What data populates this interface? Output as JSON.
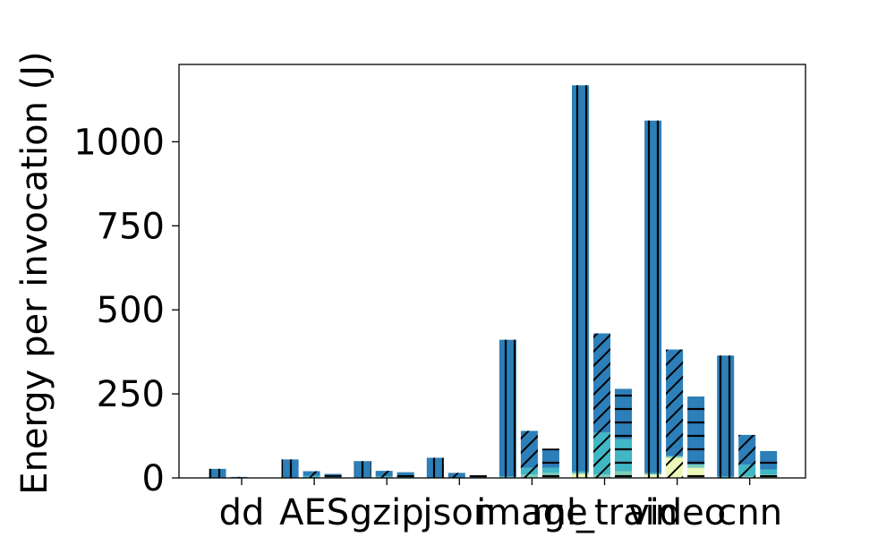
{
  "chart_data": {
    "type": "bar",
    "ylabel": "Energy per invocation (J)",
    "xlabel": "",
    "ylim": [
      0,
      1230
    ],
    "yticks": [
      0,
      250,
      500,
      750,
      1000
    ],
    "categories": [
      "dd",
      "AES",
      "gzip",
      "json",
      "image",
      "ml_train",
      "video",
      "cnn"
    ],
    "bars_per_category": [
      "vertical-hatch",
      "diagonal-hatch",
      "horizontal-hatch"
    ],
    "component_colors": [
      "#edf7b8",
      "#7fcdbb",
      "#41b6c4",
      "#2c7fb8"
    ],
    "bars": [
      {
        "category": "dd",
        "hatch": "vertical",
        "segments": [
          0,
          0,
          0,
          27
        ]
      },
      {
        "category": "dd",
        "hatch": "diagonal",
        "segments": [
          0,
          0,
          0,
          3
        ]
      },
      {
        "category": "dd",
        "hatch": "horizontal",
        "segments": [
          0,
          0,
          0,
          1
        ]
      },
      {
        "category": "AES",
        "hatch": "vertical",
        "segments": [
          0,
          0,
          0,
          55
        ]
      },
      {
        "category": "AES",
        "hatch": "diagonal",
        "segments": [
          0,
          0,
          6,
          14
        ]
      },
      {
        "category": "AES",
        "hatch": "horizontal",
        "segments": [
          0,
          0,
          5,
          7
        ]
      },
      {
        "category": "gzip",
        "hatch": "vertical",
        "segments": [
          0,
          0,
          0,
          50
        ]
      },
      {
        "category": "gzip",
        "hatch": "diagonal",
        "segments": [
          0,
          0,
          5,
          16
        ]
      },
      {
        "category": "gzip",
        "hatch": "horizontal",
        "segments": [
          0,
          0,
          8,
          9
        ]
      },
      {
        "category": "json",
        "hatch": "vertical",
        "segments": [
          0,
          0,
          0,
          60
        ]
      },
      {
        "category": "json",
        "hatch": "diagonal",
        "segments": [
          0,
          0,
          0,
          15
        ]
      },
      {
        "category": "json",
        "hatch": "horizontal",
        "segments": [
          0,
          0,
          0,
          8
        ]
      },
      {
        "category": "image",
        "hatch": "vertical",
        "segments": [
          0,
          2,
          3,
          406
        ]
      },
      {
        "category": "image",
        "hatch": "diagonal",
        "segments": [
          0,
          10,
          20,
          110
        ]
      },
      {
        "category": "image",
        "hatch": "horizontal",
        "segments": [
          0,
          15,
          15,
          57
        ]
      },
      {
        "category": "ml_train",
        "hatch": "vertical",
        "segments": [
          12,
          3,
          5,
          1148
        ]
      },
      {
        "category": "ml_train",
        "hatch": "diagonal",
        "segments": [
          0,
          10,
          125,
          295
        ]
      },
      {
        "category": "ml_train",
        "hatch": "horizontal",
        "segments": [
          0,
          20,
          95,
          150
        ]
      },
      {
        "category": "video",
        "hatch": "vertical",
        "segments": [
          10,
          2,
          3,
          1048
        ]
      },
      {
        "category": "video",
        "hatch": "diagonal",
        "segments": [
          60,
          5,
          0,
          317
        ]
      },
      {
        "category": "video",
        "hatch": "horizontal",
        "segments": [
          30,
          10,
          0,
          202
        ]
      },
      {
        "category": "cnn",
        "hatch": "vertical",
        "segments": [
          0,
          0,
          5,
          359
        ]
      },
      {
        "category": "cnn",
        "hatch": "diagonal",
        "segments": [
          0,
          5,
          35,
          88
        ]
      },
      {
        "category": "cnn",
        "hatch": "horizontal",
        "segments": [
          0,
          10,
          15,
          55
        ]
      }
    ],
    "grid": false,
    "legend": "none"
  }
}
